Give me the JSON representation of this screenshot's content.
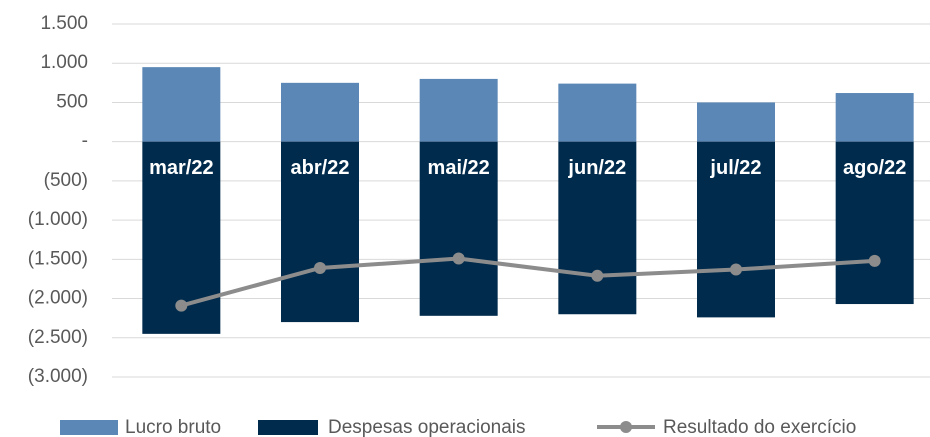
{
  "chart_data": {
    "type": "bar",
    "categories": [
      "mar/22",
      "abr/22",
      "mai/22",
      "jun/22",
      "jul/22",
      "ago/22"
    ],
    "series": [
      {
        "name": "Lucro bruto",
        "color": "#5b87b6",
        "values": [
          950,
          750,
          800,
          740,
          500,
          620
        ]
      },
      {
        "name": "Despesas operacionais",
        "color": "#002b4c",
        "values": [
          -2450,
          -2300,
          -2220,
          -2200,
          -2240,
          -2070
        ]
      },
      {
        "name": "Resultado do exercício",
        "type": "line",
        "color": "#8c8c8c",
        "values": [
          -2090,
          -1610,
          -1490,
          -1710,
          -1630,
          -1520
        ]
      }
    ],
    "ylim": [
      -3000,
      1500
    ],
    "yticks": [
      {
        "value": 1500,
        "label": "1.500"
      },
      {
        "value": 1000,
        "label": "1.000"
      },
      500,
      {
        "value": 0,
        "label": "-"
      },
      {
        "value": -500,
        "label": "(500)"
      },
      {
        "value": -1000,
        "label": "(1.000)"
      },
      {
        "value": -1500,
        "label": "(1.500)"
      },
      {
        "value": -2000,
        "label": "(2.000)"
      },
      {
        "value": -2500,
        "label": "(2.500)"
      },
      {
        "value": -3000,
        "label": "(3.000)"
      }
    ],
    "grid": true
  }
}
